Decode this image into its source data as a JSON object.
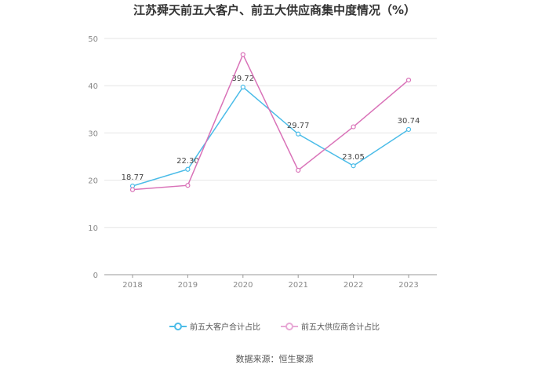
{
  "title": "江苏舜天前五大客户、前五大供应商集中度情况（%）",
  "source": "数据来源：恒生聚源",
  "chart_data": {
    "type": "line",
    "categories": [
      "2018",
      "2019",
      "2020",
      "2021",
      "2022",
      "2023"
    ],
    "ylim": [
      0,
      50
    ],
    "yticks": [
      0,
      10,
      20,
      30,
      40,
      50
    ],
    "grid": true,
    "legend_position": "bottom",
    "series": [
      {
        "name": "前五大客户合计占比",
        "color": "#4bbce8",
        "values": [
          18.77,
          22.3,
          39.72,
          29.77,
          23.05,
          30.74
        ],
        "show_labels": true,
        "labels": [
          "18.77",
          "22.30",
          "39.72",
          "29.77",
          "23.05",
          "30.74"
        ]
      },
      {
        "name": "前五大供应商合计占比",
        "color": "#d972b8",
        "values": [
          18.0,
          18.9,
          46.6,
          22.1,
          31.3,
          41.2
        ],
        "show_labels": false
      }
    ]
  }
}
